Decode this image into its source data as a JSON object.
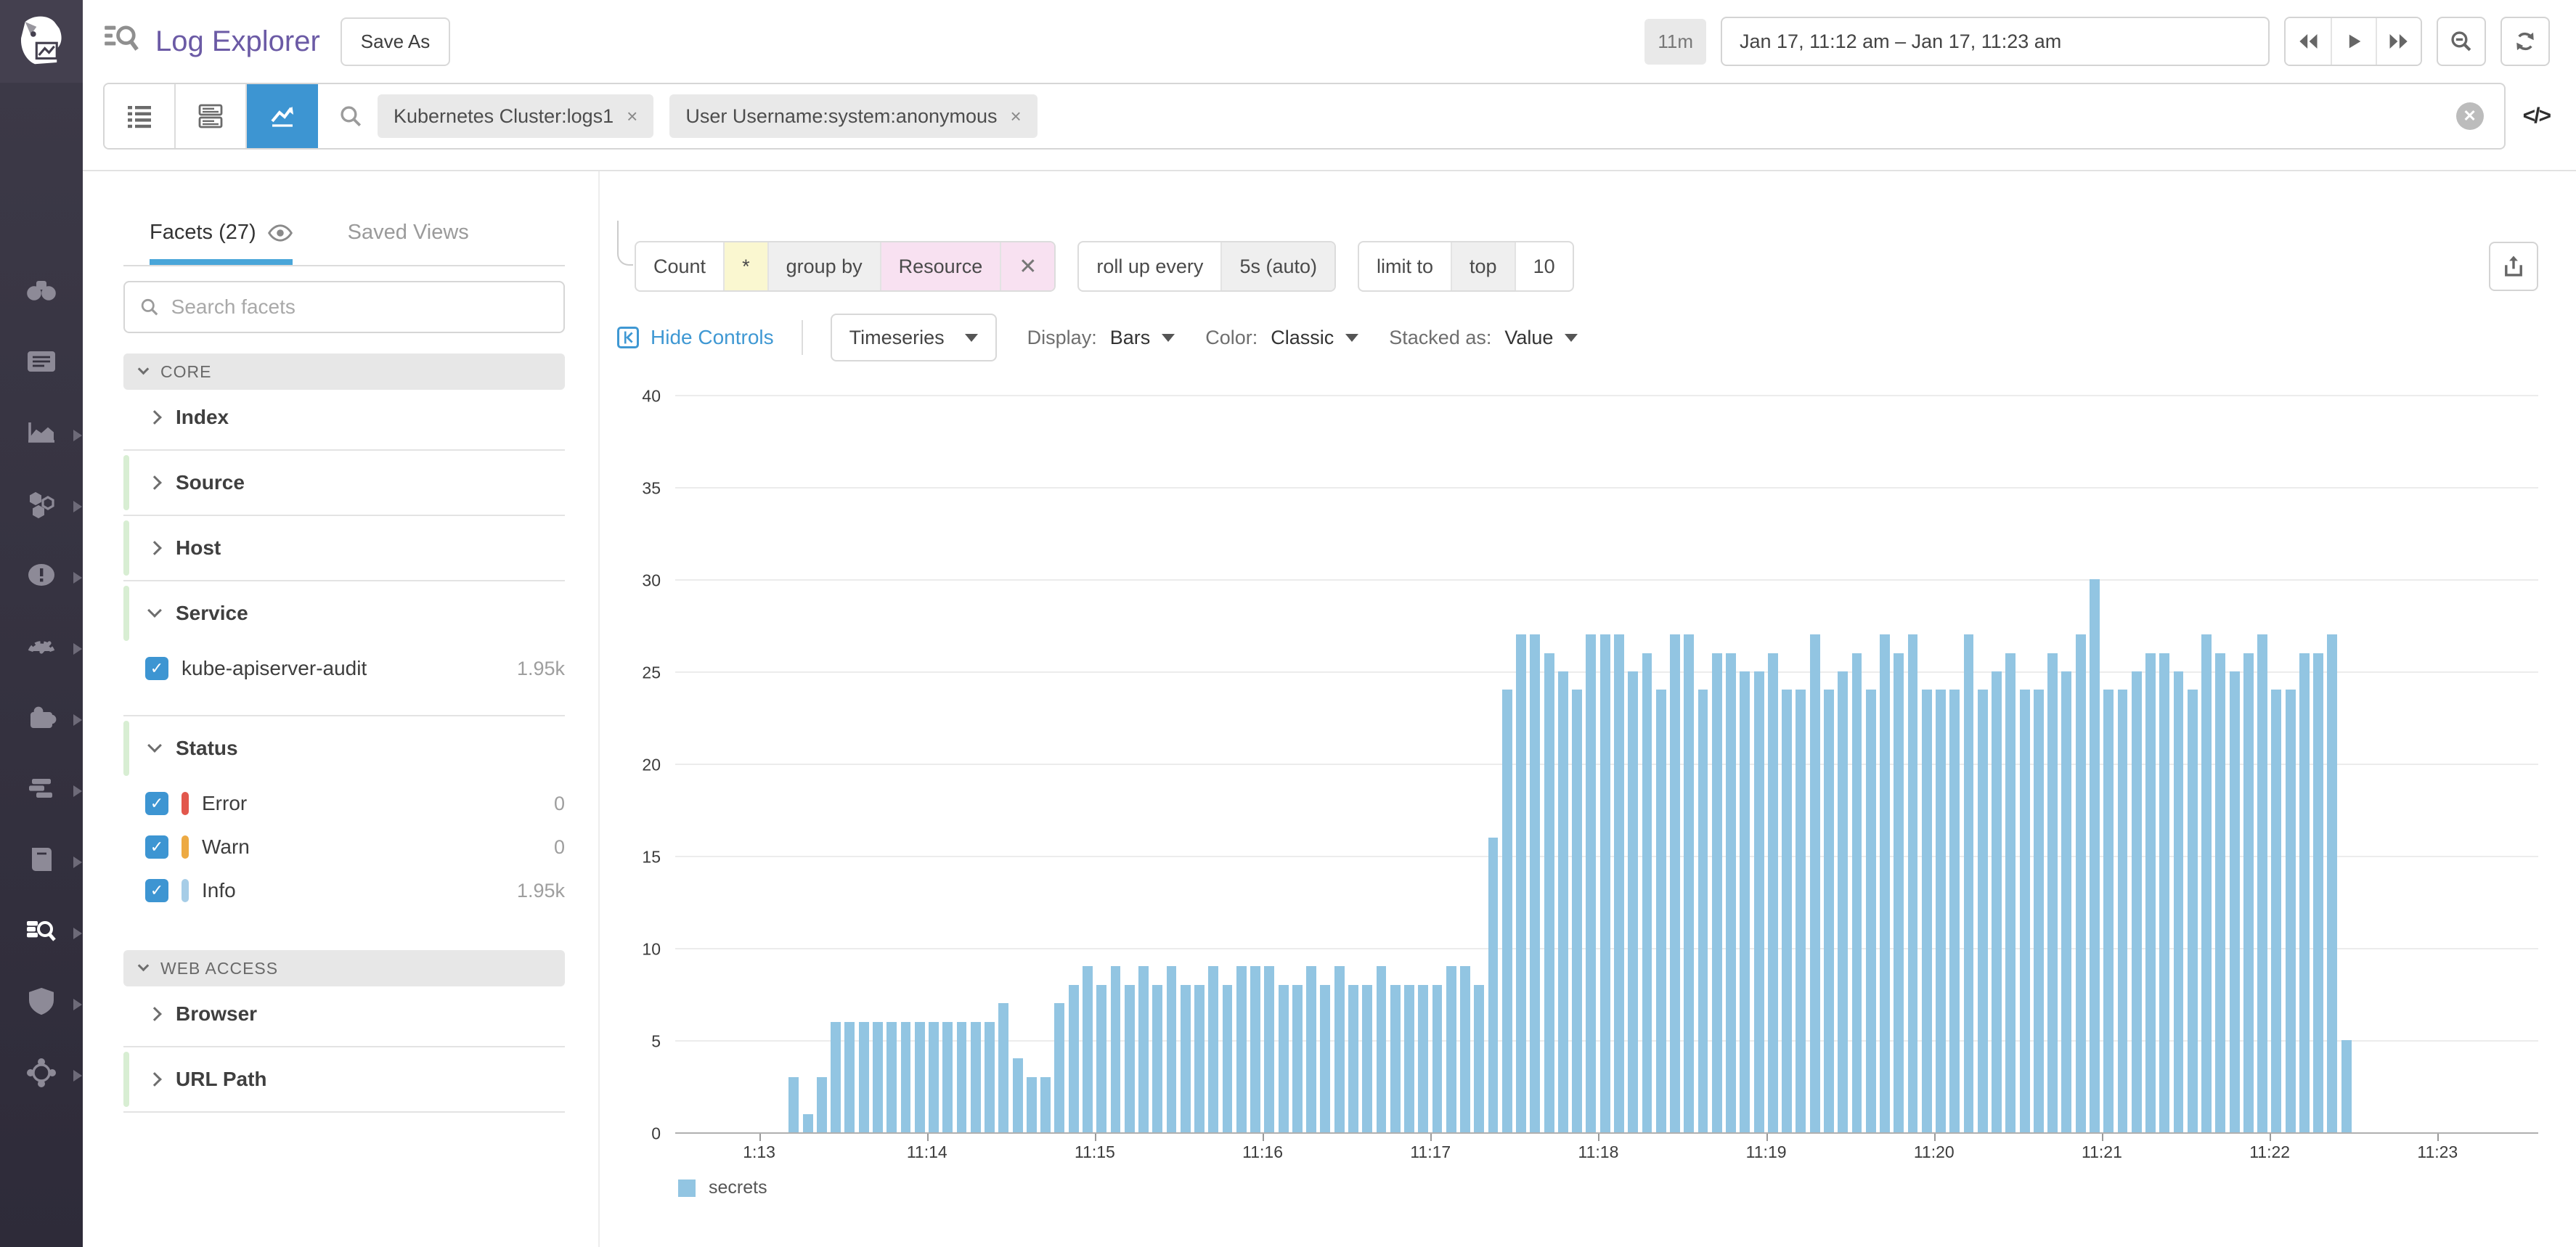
{
  "colors": {
    "accent_blue": "#3d95d2",
    "title_purple": "#6b5aa5",
    "bar_blue": "#92c5e2",
    "error_red": "#e2574c",
    "warn_orange": "#edaa43",
    "info_blue": "#a6cde7",
    "facet_green": "#d8eed3",
    "sidenav_dark": "#35323f"
  },
  "sidenav": {
    "items": [
      {
        "name": "watchdog",
        "arrow": false
      },
      {
        "name": "dashboards",
        "arrow": false
      },
      {
        "name": "metrics",
        "arrow": true
      },
      {
        "name": "infrastructure",
        "arrow": true
      },
      {
        "name": "monitors",
        "arrow": true
      },
      {
        "name": "apm",
        "arrow": true
      },
      {
        "name": "integrations",
        "arrow": true
      },
      {
        "name": "events",
        "arrow": true
      },
      {
        "name": "notebooks",
        "arrow": true
      },
      {
        "name": "logs",
        "arrow": true,
        "active": true
      },
      {
        "name": "security",
        "arrow": true
      },
      {
        "name": "network",
        "arrow": true
      }
    ]
  },
  "header": {
    "title": "Log Explorer",
    "save_as": "Save As",
    "time_badge": "11m",
    "time_range": "Jan 17, 11:12 am – Jan 17, 11:23 am"
  },
  "search": {
    "filters": [
      {
        "label": "Kubernetes Cluster:logs1"
      },
      {
        "label": "User Username:system:anonymous"
      }
    ],
    "code_toggle": "</>"
  },
  "facets_panel": {
    "tab_facets": "Facets (27)",
    "tab_saved_views": "Saved Views",
    "search_placeholder": "Search facets",
    "sections": [
      {
        "title": "CORE",
        "groups": [
          {
            "name": "Index",
            "expanded": false,
            "green": false,
            "sep": true,
            "items": []
          },
          {
            "name": "Source",
            "expanded": false,
            "green": true,
            "sep": true,
            "items": []
          },
          {
            "name": "Host",
            "expanded": false,
            "green": true,
            "sep": true,
            "items": []
          },
          {
            "name": "Service",
            "expanded": true,
            "green": true,
            "sep": true,
            "items": [
              {
                "label": "kube-apiserver-audit",
                "count": "1.95k",
                "checked": true,
                "pill": ""
              }
            ]
          },
          {
            "name": "Status",
            "expanded": true,
            "green": true,
            "sep": false,
            "items": [
              {
                "label": "Error",
                "count": "0",
                "checked": true,
                "pill": "#e2574c"
              },
              {
                "label": "Warn",
                "count": "0",
                "checked": true,
                "pill": "#edaa43"
              },
              {
                "label": "Info",
                "count": "1.95k",
                "checked": true,
                "pill": "#a6cde7"
              }
            ]
          }
        ]
      },
      {
        "title": "WEB ACCESS",
        "groups": [
          {
            "name": "Browser",
            "expanded": false,
            "green": false,
            "sep": true,
            "items": []
          },
          {
            "name": "URL Path",
            "expanded": false,
            "green": true,
            "sep": true,
            "items": []
          }
        ]
      }
    ]
  },
  "query": {
    "measure": "Count",
    "measure_star": "*",
    "group_by_label": "group by",
    "group_by_value": "Resource",
    "close_x": "✕",
    "rollup_label": "roll up every",
    "rollup_value": "5s (auto)",
    "limit_label": "limit to",
    "limit_order": "top",
    "limit_count": "10"
  },
  "controls": {
    "hide_controls": "Hide Controls",
    "viz_type": "Timeseries",
    "display_label": "Display:",
    "display_value": "Bars",
    "color_label": "Color:",
    "color_value": "Classic",
    "stacked_label": "Stacked as:",
    "stacked_value": "Value"
  },
  "chart_data": {
    "type": "bar",
    "series": [
      {
        "name": "secrets",
        "color": "#92c5e2"
      }
    ],
    "ylim": [
      0,
      40
    ],
    "yticks": [
      0,
      5,
      10,
      15,
      20,
      25,
      30,
      35,
      40
    ],
    "grid": true,
    "legend_position": "bottom-left",
    "axis_start": "11:12:30",
    "axis_end": "11:23:36",
    "interval_seconds": 5,
    "first_bar_time": "11:13:10",
    "x_ticks": [
      {
        "label": "1:13",
        "time": "11:13:00"
      },
      {
        "label": "11:14",
        "time": "11:14:00"
      },
      {
        "label": "11:15",
        "time": "11:15:00"
      },
      {
        "label": "11:16",
        "time": "11:16:00"
      },
      {
        "label": "11:17",
        "time": "11:17:00"
      },
      {
        "label": "11:18",
        "time": "11:18:00"
      },
      {
        "label": "11:19",
        "time": "11:19:00"
      },
      {
        "label": "11:20",
        "time": "11:20:00"
      },
      {
        "label": "11:21",
        "time": "11:21:00"
      },
      {
        "label": "11:22",
        "time": "11:22:00"
      },
      {
        "label": "11:23",
        "time": "11:23:00"
      }
    ],
    "values": [
      3,
      1,
      3,
      6,
      6,
      6,
      6,
      6,
      6,
      6,
      6,
      6,
      6,
      6,
      6,
      7,
      4,
      3,
      3,
      7,
      8,
      9,
      8,
      9,
      8,
      9,
      8,
      9,
      8,
      8,
      9,
      8,
      9,
      9,
      9,
      8,
      8,
      9,
      8,
      9,
      8,
      8,
      9,
      8,
      8,
      8,
      8,
      9,
      9,
      8,
      16,
      24,
      27,
      27,
      26,
      25,
      24,
      27,
      27,
      27,
      25,
      26,
      24,
      27,
      27,
      24,
      26,
      26,
      25,
      25,
      26,
      24,
      24,
      27,
      24,
      25,
      26,
      24,
      27,
      26,
      27,
      24,
      24,
      24,
      27,
      24,
      25,
      26,
      24,
      24,
      26,
      25,
      27,
      30,
      24,
      24,
      25,
      26,
      26,
      25,
      24,
      27,
      26,
      25,
      26,
      27,
      24,
      24,
      26,
      26,
      27,
      5
    ]
  }
}
